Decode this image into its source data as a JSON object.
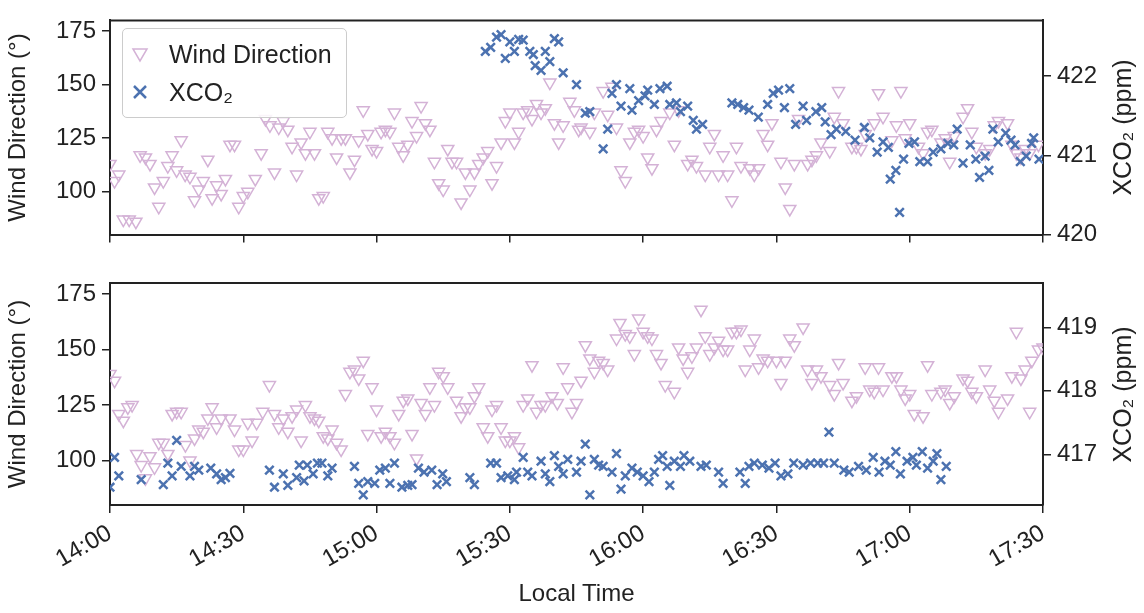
{
  "chart_data": [
    {
      "type": "scatter",
      "ylabel": "Wind Direction (°)",
      "y2label": "XCO₂ (ppm)",
      "xlim": [
        14,
        17.5
      ],
      "xticks": [
        {
          "value": 14,
          "label": null
        },
        {
          "value": 14.5,
          "label": null
        },
        {
          "value": 15,
          "label": null
        },
        {
          "value": 15.5,
          "label": null
        },
        {
          "value": 16,
          "label": null
        },
        {
          "value": 16.5,
          "label": null
        },
        {
          "value": 17,
          "label": null
        },
        {
          "value": 17.5,
          "label": null
        }
      ],
      "ylim": [
        80,
        180
      ],
      "yticks": [
        100,
        125,
        150,
        175
      ],
      "y2lim": [
        420,
        422.7
      ],
      "y2ticks": [
        420,
        421,
        422
      ],
      "tick_labels": "y",
      "grid": false,
      "legend": "top left",
      "series": [
        {
          "name": "Wind Direction",
          "color": "#d4b2d6",
          "marker": "triangle",
          "x": [
            14.0,
            14.017,
            14.033,
            14.05,
            14.072,
            14.097,
            14.113,
            14.133,
            14.15,
            14.167,
            14.183,
            14.2,
            14.217,
            14.233,
            14.25,
            14.267,
            14.282,
            14.3,
            14.317,
            14.333,
            14.35,
            14.367,
            14.383,
            14.4,
            14.417,
            14.433,
            14.45,
            14.467,
            14.483,
            14.5,
            14.517,
            14.545,
            14.567,
            14.583,
            14.6,
            14.617,
            14.633,
            14.65,
            14.667,
            14.683,
            14.7,
            14.717,
            14.733,
            14.75,
            14.767,
            14.783,
            14.8,
            14.817,
            14.833,
            14.85,
            14.867,
            14.883,
            14.9,
            14.917,
            14.933,
            14.95,
            14.967,
            14.983,
            15.0,
            15.017,
            15.033,
            15.05,
            15.067,
            15.083,
            15.1,
            15.117,
            15.133,
            15.15,
            15.167,
            15.183,
            15.2,
            15.217,
            15.233,
            15.25,
            15.267,
            15.283,
            15.3,
            15.317,
            15.333,
            15.35,
            15.367,
            15.383,
            15.4,
            15.417,
            15.433,
            15.45,
            15.467,
            15.483,
            15.5,
            15.517,
            15.533,
            15.55,
            15.567,
            15.583,
            15.6,
            15.617,
            15.633,
            15.65,
            15.667,
            15.683,
            15.7,
            15.725,
            15.742,
            15.758,
            15.767,
            15.8,
            15.817,
            15.85,
            15.867,
            15.883,
            15.9,
            15.917,
            15.933,
            15.95,
            15.967,
            15.983,
            16.0,
            16.017,
            16.033,
            16.05,
            16.067,
            16.1,
            16.117,
            16.133,
            16.167,
            16.183,
            16.2,
            16.233,
            16.25,
            16.267,
            16.283,
            16.3,
            16.317,
            16.333,
            16.35,
            16.367,
            16.4,
            16.417,
            16.433,
            16.45,
            16.467,
            16.483,
            16.517,
            16.533,
            16.55,
            16.567,
            16.583,
            16.617,
            16.633,
            16.65,
            16.667,
            16.7,
            16.717,
            16.733,
            16.75,
            16.783,
            16.8,
            16.817,
            16.833,
            16.867,
            16.883,
            16.9,
            16.933,
            16.95,
            16.967,
            16.983,
            17.0,
            17.033,
            17.05,
            17.067,
            17.083,
            17.117,
            17.133,
            17.15,
            17.167,
            17.2,
            17.217,
            17.233,
            17.25,
            17.283,
            17.3,
            17.317,
            17.333,
            17.367,
            17.383,
            17.4,
            17.417,
            17.433,
            17.45,
            17.483
          ],
          "values": [
            113,
            105,
            108,
            87,
            87,
            86,
            117,
            116,
            113,
            102,
            93,
            105,
            112,
            117,
            110,
            124,
            108,
            107,
            96,
            101,
            105,
            115,
            97,
            103,
            99,
            106,
            122,
            122,
            93,
            98,
            100,
            106,
            118,
            134,
            131,
            109,
            130,
            133,
            129,
            121,
            108,
            123,
            118,
            128,
            118,
            97,
            98,
            128,
            125,
            116,
            125,
            125,
            109,
            115,
            124,
            138,
            127,
            120,
            119,
            128,
            129,
            128,
            137,
            121,
            117,
            122,
            133,
            126,
            140,
            132,
            129,
            114,
            104,
            101,
            120,
            114,
            114,
            95,
            109,
            101,
            109,
            113,
            116,
            119,
            104,
            112,
            123,
            133,
            137,
            123,
            128,
            137,
            138,
            134,
            141,
            137,
            139,
            151,
            132,
            123,
            131,
            142,
            138,
            129,
            130,
            128,
            137,
            147,
            136,
            149,
            130,
            110,
            105,
            123,
            128,
            129,
            126,
            116,
            111,
            129,
            133,
            137,
            122,
            138,
            113,
            115,
            112,
            108,
            121,
            127,
            108,
            117,
            108,
            96,
            121,
            112,
            111,
            108,
            111,
            127,
            122,
            132,
            114,
            102,
            92,
            113,
            134,
            113,
            115,
            117,
            123,
            119,
            135,
            147,
            132,
            121,
            121,
            120,
            127,
            132,
            146,
            135,
            124,
            131,
            147,
            125,
            132,
            121,
            118,
            128,
            129,
            123,
            125,
            114,
            126,
            135,
            139,
            128,
            121,
            118,
            120,
            131,
            133,
            132,
            122,
            118,
            116,
            120,
            118,
            122
          ]
        },
        {
          "name": "XCO₂",
          "color": "#4c72b0",
          "marker": "cross",
          "axis": "y2",
          "x": [
            15.408,
            15.428,
            15.45,
            15.467,
            15.483,
            15.5,
            15.517,
            15.533,
            15.55,
            15.575,
            15.588,
            15.595,
            15.617,
            15.633,
            15.65,
            15.667,
            15.683,
            15.7,
            15.75,
            15.783,
            15.8,
            15.85,
            15.867,
            15.883,
            15.9,
            15.917,
            15.95,
            15.958,
            15.983,
            16.007,
            16.017,
            16.042,
            16.063,
            16.09,
            16.1,
            16.125,
            16.14,
            16.167,
            16.188,
            16.2,
            16.223,
            16.333,
            16.355,
            16.377,
            16.397,
            16.432,
            16.467,
            16.488,
            16.508,
            16.53,
            16.55,
            16.572,
            16.6,
            16.613,
            16.648,
            16.67,
            16.683,
            16.705,
            16.725,
            16.76,
            16.795,
            16.83,
            16.85,
            16.878,
            16.9,
            16.92,
            16.927,
            16.948,
            16.962,
            16.977,
            16.997,
            17.018,
            17.038,
            17.067,
            17.088,
            17.117,
            17.143,
            17.165,
            17.178,
            17.2,
            17.227,
            17.248,
            17.262,
            17.283,
            17.297,
            17.312,
            17.332,
            17.36,
            17.38,
            17.395,
            17.415,
            17.437,
            17.457,
            17.465,
            17.485
          ],
          "values": [
            422.31,
            422.36,
            422.49,
            422.52,
            422.22,
            422.43,
            422.31,
            422.46,
            422.45,
            422.31,
            422.27,
            422.13,
            422.07,
            422.31,
            422.18,
            422.47,
            422.43,
            422.04,
            421.89,
            421.53,
            421.55,
            421.08,
            421.33,
            421.78,
            421.89,
            421.62,
            421.84,
            421.57,
            421.69,
            421.75,
            421.82,
            421.64,
            421.84,
            421.87,
            421.64,
            421.66,
            421.55,
            421.62,
            421.44,
            421.33,
            421.39,
            421.66,
            421.64,
            421.6,
            421.57,
            421.48,
            421.64,
            421.78,
            421.82,
            421.6,
            421.84,
            421.39,
            421.62,
            421.44,
            421.55,
            421.6,
            421.42,
            421.26,
            421.33,
            421.3,
            421.19,
            421.35,
            421.22,
            421.04,
            421.17,
            421.1,
            420.7,
            420.81,
            420.28,
            420.95,
            421.15,
            421.17,
            420.92,
            420.92,
            421.04,
            421.08,
            421.15,
            421.13,
            421.33,
            420.9,
            421.13,
            420.95,
            420.72,
            420.99,
            420.81,
            421.33,
            421.17,
            421.28,
            421.19,
            421.13,
            420.92,
            420.99,
            421.15,
            421.22,
            420.95
          ]
        }
      ]
    },
    {
      "type": "scatter",
      "xlabel": "Local Time",
      "ylabel": "Wind Direction (°)",
      "y2label": "XCO₂ (ppm)",
      "xlim": [
        14,
        17.5
      ],
      "xticks": [
        {
          "value": 14,
          "label": "14:00"
        },
        {
          "value": 14.5,
          "label": "14:30"
        },
        {
          "value": 15,
          "label": "15:00"
        },
        {
          "value": 15.5,
          "label": "15:30"
        },
        {
          "value": 16,
          "label": "16:00"
        },
        {
          "value": 16.5,
          "label": "16:30"
        },
        {
          "value": 17,
          "label": "17:00"
        },
        {
          "value": 17.5,
          "label": "17:30"
        }
      ],
      "ylim": [
        80,
        180
      ],
      "yticks": [
        100,
        125,
        150,
        175
      ],
      "y2lim": [
        416.2,
        419.7
      ],
      "y2ticks": [
        417,
        418,
        419
      ],
      "grid": false,
      "series": [
        {
          "color": "#d4b2d6",
          "marker": "triangle",
          "x": [
            14.0,
            14.017,
            14.033,
            14.05,
            14.067,
            14.083,
            14.1,
            14.117,
            14.133,
            14.15,
            14.167,
            14.183,
            14.2,
            14.217,
            14.233,
            14.25,
            14.267,
            14.283,
            14.3,
            14.317,
            14.333,
            14.35,
            14.367,
            14.383,
            14.4,
            14.417,
            14.45,
            14.467,
            14.483,
            14.5,
            14.517,
            14.533,
            14.55,
            14.573,
            14.598,
            14.617,
            14.633,
            14.65,
            14.667,
            14.683,
            14.7,
            14.717,
            14.733,
            14.75,
            14.767,
            14.783,
            14.8,
            14.817,
            14.833,
            14.85,
            14.867,
            14.883,
            14.9,
            14.917,
            14.933,
            14.95,
            14.967,
            14.983,
            15.0,
            15.017,
            15.033,
            15.05,
            15.067,
            15.083,
            15.1,
            15.117,
            15.133,
            15.15,
            15.167,
            15.183,
            15.2,
            15.217,
            15.233,
            15.25,
            15.267,
            15.3,
            15.317,
            15.333,
            15.35,
            15.367,
            15.383,
            15.4,
            15.417,
            15.433,
            15.45,
            15.467,
            15.483,
            15.5,
            15.517,
            15.533,
            15.55,
            15.567,
            15.583,
            15.6,
            15.617,
            15.633,
            15.658,
            15.678,
            15.7,
            15.717,
            15.733,
            15.75,
            15.767,
            15.783,
            15.8,
            15.817,
            15.833,
            15.85,
            15.867,
            15.9,
            15.913,
            15.933,
            15.95,
            15.967,
            15.983,
            16.0,
            16.017,
            16.033,
            16.05,
            16.067,
            16.083,
            16.117,
            16.133,
            16.15,
            16.167,
            16.183,
            16.2,
            16.217,
            16.233,
            16.25,
            16.267,
            16.283,
            16.3,
            16.317,
            16.333,
            16.35,
            16.367,
            16.383,
            16.4,
            16.417,
            16.433,
            16.45,
            16.467,
            16.5,
            16.517,
            16.533,
            16.55,
            16.567,
            16.6,
            16.617,
            16.633,
            16.65,
            16.667,
            16.7,
            16.717,
            16.733,
            16.75,
            16.783,
            16.8,
            16.833,
            16.85,
            16.867,
            16.883,
            16.9,
            16.933,
            16.95,
            16.967,
            16.983,
            17.0,
            17.017,
            17.05,
            17.067,
            17.083,
            17.117,
            17.133,
            17.15,
            17.167,
            17.2,
            17.217,
            17.233,
            17.25,
            17.283,
            17.3,
            17.317,
            17.333,
            17.367,
            17.383,
            17.4,
            17.417,
            17.433,
            17.45,
            17.458,
            17.483,
            17.5
          ],
          "values": [
            139,
            136,
            121,
            118,
            124,
            125,
            103,
            98,
            92,
            102,
            97,
            108,
            108,
            103,
            121,
            122,
            122,
            107,
            100,
            110,
            114,
            113,
            119,
            124,
            115,
            119,
            119,
            114,
            105,
            105,
            117,
            109,
            117,
            122,
            134,
            121,
            115,
            119,
            113,
            120,
            123,
            109,
            125,
            120,
            119,
            118,
            111,
            110,
            114,
            108,
            105,
            130,
            140,
            141,
            137,
            145,
            112,
            133,
            123,
            111,
            113,
            111,
            108,
            121,
            127,
            128,
            112,
            101,
            126,
            121,
            133,
            125,
            140,
            138,
            133,
            127,
            120,
            124,
            124,
            129,
            133,
            115,
            111,
            123,
            125,
            115,
            109,
            109,
            111,
            106,
            125,
            128,
            143,
            122,
            125,
            125,
            129,
            126,
            142,
            133,
            122,
            126,
            136,
            152,
            146,
            140,
            145,
            144,
            141,
            155,
            162,
            157,
            156,
            148,
            164,
            158,
            156,
            155,
            148,
            144,
            134,
            131,
            151,
            146,
            140,
            147,
            151,
            168,
            156,
            148,
            151,
            154,
            150,
            150,
            158,
            158,
            159,
            141,
            150,
            155,
            142,
            146,
            145,
            145,
            135,
            145,
            155,
            152,
            160,
            141,
            135,
            141,
            138,
            134,
            130,
            144,
            135,
            127,
            129,
            142,
            132,
            131,
            142,
            132,
            138,
            138,
            132,
            128,
            130,
            121,
            120,
            143,
            130,
            131,
            132,
            126,
            129,
            137,
            136,
            131,
            129,
            141,
            132,
            127,
            122,
            128,
            138,
            158,
            137,
            141,
            122,
            145,
            150,
            151
          ]
        },
        {
          "color": "#4c72b0",
          "marker": "cross",
          "axis": "y2",
          "x": [
            14.0,
            14.017,
            14.033,
            14.117,
            14.2,
            14.217,
            14.233,
            14.25,
            14.267,
            14.3,
            14.317,
            14.333,
            14.378,
            14.4,
            14.417,
            14.433,
            14.45,
            14.598,
            14.617,
            14.65,
            14.667,
            14.7,
            14.71,
            14.728,
            14.74,
            14.762,
            14.778,
            14.795,
            14.817,
            14.833,
            14.917,
            14.933,
            14.95,
            14.967,
            14.993,
            15.012,
            15.033,
            15.05,
            15.067,
            15.095,
            15.117,
            15.133,
            15.157,
            15.178,
            15.207,
            15.227,
            15.248,
            15.262,
            15.35,
            15.367,
            15.428,
            15.45,
            15.467,
            15.492,
            15.517,
            15.525,
            15.55,
            15.567,
            15.583,
            15.617,
            15.633,
            15.65,
            15.667,
            15.683,
            15.7,
            15.717,
            15.75,
            15.767,
            15.783,
            15.8,
            15.817,
            15.833,
            15.85,
            15.883,
            15.9,
            15.917,
            15.933,
            15.958,
            15.978,
            16.0,
            16.022,
            16.042,
            16.058,
            16.073,
            16.09,
            16.1,
            16.117,
            16.14,
            16.153,
            16.175,
            16.217,
            16.237,
            16.283,
            16.3,
            16.363,
            16.383,
            16.397,
            16.417,
            16.447,
            16.472,
            16.495,
            16.517,
            16.543,
            16.565,
            16.6,
            16.628,
            16.655,
            16.677,
            16.697,
            16.717,
            16.753,
            16.773,
            16.808,
            16.837,
            16.863,
            16.885,
            16.907,
            16.927,
            16.948,
            16.965,
            16.99,
            17.012,
            17.025,
            17.047,
            17.067,
            17.088,
            17.102,
            17.117,
            17.137
          ],
          "values": [
            416.48,
            416.95,
            416.66,
            416.6,
            416.52,
            416.86,
            416.66,
            417.22,
            416.81,
            416.66,
            416.81,
            416.75,
            416.78,
            416.69,
            416.6,
            416.63,
            416.7,
            416.75,
            416.48,
            416.69,
            416.51,
            416.63,
            416.83,
            416.58,
            416.83,
            416.69,
            416.86,
            416.86,
            416.66,
            416.78,
            416.81,
            416.54,
            416.36,
            416.57,
            416.54,
            416.75,
            416.78,
            416.54,
            416.86,
            416.48,
            416.51,
            416.52,
            416.78,
            416.72,
            416.75,
            416.52,
            416.69,
            416.57,
            416.63,
            416.52,
            416.86,
            416.86,
            416.63,
            416.66,
            416.6,
            416.72,
            416.95,
            416.72,
            416.66,
            416.89,
            416.69,
            416.57,
            416.98,
            416.81,
            416.69,
            416.92,
            416.72,
            416.89,
            417.16,
            416.36,
            416.92,
            416.83,
            416.81,
            416.72,
            417.01,
            416.45,
            416.66,
            416.78,
            416.72,
            416.66,
            416.57,
            416.72,
            416.92,
            416.98,
            416.81,
            416.51,
            416.89,
            416.81,
            416.98,
            416.89,
            416.81,
            416.83,
            416.72,
            416.54,
            416.72,
            416.54,
            416.81,
            416.86,
            416.83,
            416.78,
            416.86,
            416.66,
            416.69,
            416.86,
            416.83,
            416.86,
            416.86,
            416.86,
            417.35,
            416.86,
            416.75,
            416.72,
            416.81,
            416.75,
            416.95,
            416.72,
            416.89,
            416.83,
            417.04,
            416.69,
            416.89,
            416.95,
            416.83,
            417.04,
            416.78,
            416.89,
            417.01,
            416.6,
            416.81
          ]
        }
      ]
    }
  ]
}
